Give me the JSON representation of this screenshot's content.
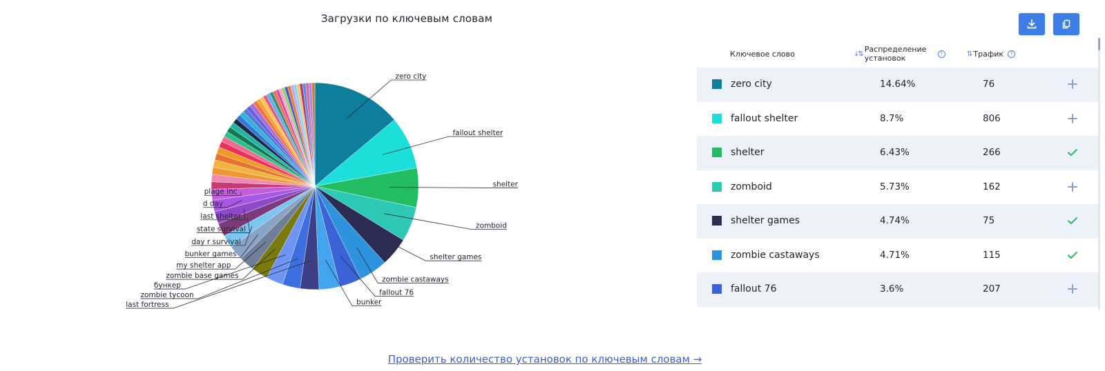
{
  "chart_title": "Загрузки по ключевым словам",
  "toolbar": {
    "download_icon": "download-icon",
    "copy_icon": "copy-icon",
    "accent": "#3d7ee6"
  },
  "table": {
    "headers": {
      "keyword": "Ключевое слово",
      "distribution": "Распределение установок",
      "traffic": "Трафик"
    },
    "rows": [
      {
        "keyword": "zero city",
        "share": "14.64%",
        "traffic": "76",
        "color": "#0d7f9c",
        "action": "plus"
      },
      {
        "keyword": "fallout shelter",
        "share": "8.7%",
        "traffic": "806",
        "color": "#1ddfd9",
        "action": "plus"
      },
      {
        "keyword": "shelter",
        "share": "6.43%",
        "traffic": "266",
        "color": "#22bd63",
        "action": "check"
      },
      {
        "keyword": "zomboid",
        "share": "5.73%",
        "traffic": "162",
        "color": "#2ec9b5",
        "action": "plus"
      },
      {
        "keyword": "shelter games",
        "share": "4.74%",
        "traffic": "75",
        "color": "#2b2c53",
        "action": "check"
      },
      {
        "keyword": "zombie castaways",
        "share": "4.71%",
        "traffic": "115",
        "color": "#2d93dc",
        "action": "check"
      },
      {
        "keyword": "fallout 76",
        "share": "3.6%",
        "traffic": "207",
        "color": "#3b63d8",
        "action": "plus"
      }
    ]
  },
  "chart_data": {
    "type": "pie",
    "title": "Загрузки по ключевым словам",
    "slices": [
      {
        "label": "zero city",
        "value": 14.64,
        "color": "#0d7f9c"
      },
      {
        "label": "fallout shelter",
        "value": 8.7,
        "color": "#1ddfd9"
      },
      {
        "label": "shelter",
        "value": 6.43,
        "color": "#22bd63"
      },
      {
        "label": "zomboid",
        "value": 5.73,
        "color": "#2ec9b5"
      },
      {
        "label": "shelter games",
        "value": 4.74,
        "color": "#2b2c53"
      },
      {
        "label": "zombie castaways",
        "value": 4.71,
        "color": "#2d93dc"
      },
      {
        "label": "fallout 76",
        "value": 3.6,
        "color": "#3b63d8"
      },
      {
        "label": "bunker",
        "value": 3.4,
        "color": "#42a4ee"
      },
      {
        "label": "last fortress",
        "value": 3.1,
        "color": "#3d3f86"
      },
      {
        "label": "zombie tycoon",
        "value": 2.9,
        "color": "#3d6ee0"
      },
      {
        "label": "бункер",
        "value": 2.8,
        "color": "#6e94f5"
      },
      {
        "label": "zombie base games",
        "value": 2.7,
        "color": "#7a7a0f"
      },
      {
        "label": "my shelter app",
        "value": 2.5,
        "color": "#6f7f99"
      },
      {
        "label": "bunker games",
        "value": 2.4,
        "color": "#8aa4c6"
      },
      {
        "label": "day r survival",
        "value": 2.2,
        "color": "#7cc5f3"
      },
      {
        "label": "state survival",
        "value": 2.2,
        "color": "#7c3a7a"
      },
      {
        "label": "last shelter",
        "value": 2.0,
        "color": "#8e49c9"
      },
      {
        "label": "d day",
        "value": 1.9,
        "color": "#a857e8"
      },
      {
        "label": "plage inc",
        "value": 1.8,
        "color": "#c05edc"
      },
      {
        "label": "",
        "value": 1.2,
        "color": "#c93a73"
      },
      {
        "label": "",
        "value": 1.2,
        "color": "#f088b2"
      },
      {
        "label": "",
        "value": 1.2,
        "color": "#ef9533"
      },
      {
        "label": "",
        "value": 1.2,
        "color": "#f0b53a"
      },
      {
        "label": "",
        "value": 1.1,
        "color": "#e8732f"
      },
      {
        "label": "",
        "value": 1.1,
        "color": "#f19a24"
      },
      {
        "label": "",
        "value": 1.0,
        "color": "#ee2f5a"
      },
      {
        "label": "",
        "value": 0.9,
        "color": "#f26b8f"
      },
      {
        "label": "",
        "value": 0.9,
        "color": "#2dbf8a"
      },
      {
        "label": "",
        "value": 0.9,
        "color": "#157a53"
      },
      {
        "label": "",
        "value": 0.9,
        "color": "#21b6a8"
      },
      {
        "label": "",
        "value": 0.8,
        "color": "#1a2a40"
      },
      {
        "label": "",
        "value": 0.8,
        "color": "#3576d8"
      },
      {
        "label": "",
        "value": 0.8,
        "color": "#2fb3d8"
      },
      {
        "label": "",
        "value": 0.7,
        "color": "#4f7ad8"
      },
      {
        "label": "",
        "value": 0.7,
        "color": "#6b5fe0"
      },
      {
        "label": "",
        "value": 0.7,
        "color": "#a46fd6"
      },
      {
        "label": "",
        "value": 0.7,
        "color": "#f4733f"
      },
      {
        "label": "",
        "value": 0.6,
        "color": "#f8a23a"
      },
      {
        "label": "",
        "value": 0.6,
        "color": "#f7c948"
      },
      {
        "label": "",
        "value": 0.6,
        "color": "#e45a84"
      },
      {
        "label": "",
        "value": 0.6,
        "color": "#5fb0f0"
      },
      {
        "label": "",
        "value": 0.6,
        "color": "#3e8f7a"
      },
      {
        "label": "",
        "value": 0.5,
        "color": "#ff6a4c"
      },
      {
        "label": "",
        "value": 0.5,
        "color": "#d94ba3"
      },
      {
        "label": "",
        "value": 0.5,
        "color": "#f2a6c8"
      },
      {
        "label": "",
        "value": 0.5,
        "color": "#8fd36a"
      },
      {
        "label": "",
        "value": 0.5,
        "color": "#4a5ac9"
      },
      {
        "label": "",
        "value": 0.5,
        "color": "#e87b2c"
      },
      {
        "label": "",
        "value": 0.5,
        "color": "#c6a2e8"
      },
      {
        "label": "",
        "value": 0.5,
        "color": "#7fd9f0"
      },
      {
        "label": "",
        "value": 0.5,
        "color": "#f9c07a"
      },
      {
        "label": "",
        "value": 0.5,
        "color": "#b03c6b"
      },
      {
        "label": "",
        "value": 0.5,
        "color": "#5a8de8"
      },
      {
        "label": "",
        "value": 0.5,
        "color": "#e0678f"
      },
      {
        "label": "",
        "value": 0.5,
        "color": "#9b8cef"
      },
      {
        "label": "",
        "value": 0.5,
        "color": "#d77a3a"
      }
    ]
  },
  "link_text": "Проверить количество установок по ключевым словам →"
}
